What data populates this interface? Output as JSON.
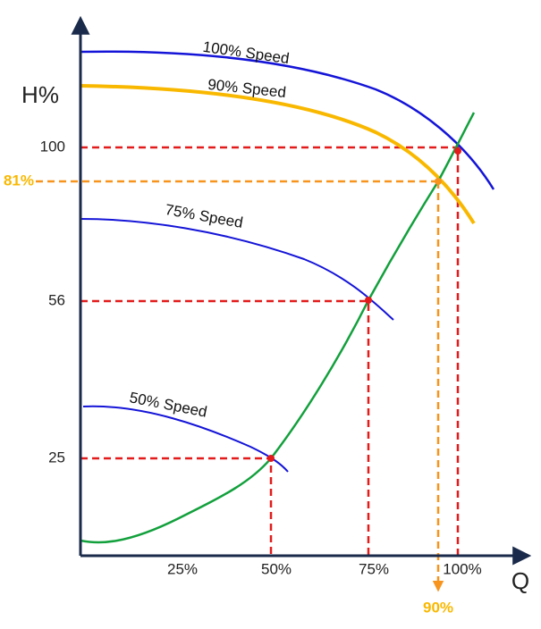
{
  "axes": {
    "y_label": "H%",
    "x_label": "Q"
  },
  "y_ticks": [
    "100",
    "56",
    "25"
  ],
  "y_marker": "81%",
  "x_ticks": [
    "25%",
    "50%",
    "75%",
    "100%"
  ],
  "x_marker": "90%",
  "curves": [
    "100% Speed",
    "90% Speed",
    "75% Speed",
    "50% Speed"
  ]
}
